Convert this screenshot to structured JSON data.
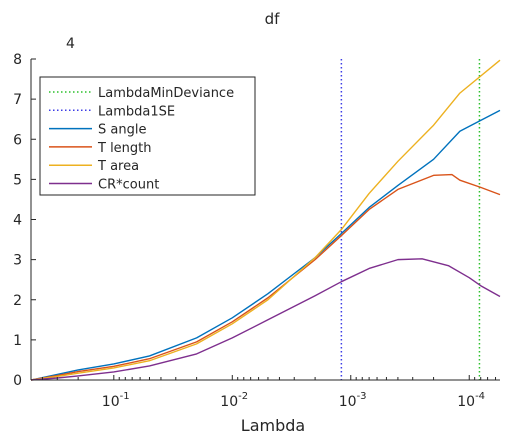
{
  "chart_data": {
    "type": "line",
    "title": "df",
    "xlabel": "Lambda",
    "ylabel": "",
    "x_scale": "log",
    "x_direction": "reversed",
    "xlim": [
      0.5,
      5.5e-05
    ],
    "ylim": [
      0,
      8
    ],
    "x_ticks": [
      {
        "value": 0.1,
        "base": "10",
        "exp": "-1"
      },
      {
        "value": 0.01,
        "base": "10",
        "exp": "-2"
      },
      {
        "value": 0.001,
        "base": "10",
        "exp": "-3"
      },
      {
        "value": 0.0001,
        "base": "10",
        "exp": "-4"
      }
    ],
    "y_ticks": [
      0,
      1,
      2,
      3,
      4,
      5,
      6,
      7,
      8
    ],
    "top_annotation": "4",
    "grid": false,
    "legend_position": "top-left",
    "series": [
      {
        "name": "S angle",
        "color": "#0072BD",
        "style": "solid",
        "x": [
          0.5,
          0.3,
          0.2,
          0.1,
          0.05,
          0.02,
          0.01,
          0.005,
          0.002,
          0.0012,
          0.0007,
          0.0004,
          0.0002,
          0.00012,
          5.5e-05
        ],
        "y": [
          0,
          0.14,
          0.25,
          0.4,
          0.6,
          1.05,
          1.55,
          2.15,
          3.05,
          3.65,
          4.3,
          4.85,
          5.5,
          6.2,
          6.72
        ]
      },
      {
        "name": "T length",
        "color": "#D95319",
        "style": "solid",
        "x": [
          0.5,
          0.3,
          0.2,
          0.1,
          0.05,
          0.02,
          0.01,
          0.005,
          0.002,
          0.0012,
          0.0007,
          0.0004,
          0.0002,
          0.00014,
          0.00012,
          8e-05,
          5.5e-05
        ],
        "y": [
          0,
          0.11,
          0.21,
          0.34,
          0.53,
          0.95,
          1.45,
          2.05,
          3.0,
          3.6,
          4.25,
          4.75,
          5.1,
          5.12,
          4.98,
          4.8,
          4.62
        ]
      },
      {
        "name": "T area",
        "color": "#EDB120",
        "style": "solid",
        "x": [
          0.5,
          0.3,
          0.2,
          0.1,
          0.05,
          0.02,
          0.01,
          0.005,
          0.002,
          0.0012,
          0.0007,
          0.0004,
          0.0002,
          0.00012,
          5.5e-05
        ],
        "y": [
          0,
          0.09,
          0.17,
          0.3,
          0.48,
          0.9,
          1.4,
          2.0,
          3.05,
          3.75,
          4.65,
          5.45,
          6.35,
          7.15,
          7.97
        ]
      },
      {
        "name": "CR*count",
        "color": "#7E2F8E",
        "style": "solid",
        "x": [
          0.5,
          0.3,
          0.2,
          0.1,
          0.05,
          0.02,
          0.01,
          0.005,
          0.002,
          0.0012,
          0.0007,
          0.0004,
          0.00025,
          0.00015,
          0.0001,
          8e-05,
          5.5e-05
        ],
        "y": [
          0,
          0.05,
          0.1,
          0.2,
          0.35,
          0.65,
          1.05,
          1.5,
          2.1,
          2.45,
          2.78,
          3.0,
          3.02,
          2.85,
          2.55,
          2.35,
          2.08
        ]
      }
    ],
    "reference_lines": [
      {
        "name": "LambdaMinDeviance",
        "color": "#2BC02B",
        "style": "dotted",
        "x": 8.2e-05
      },
      {
        "name": "Lambda1SE",
        "color": "#3C3CE6",
        "style": "dotted",
        "x": 0.0012
      }
    ],
    "legend_order": [
      "LambdaMinDeviance",
      "Lambda1SE",
      "S angle",
      "T length",
      "T area",
      "CR*count"
    ]
  }
}
